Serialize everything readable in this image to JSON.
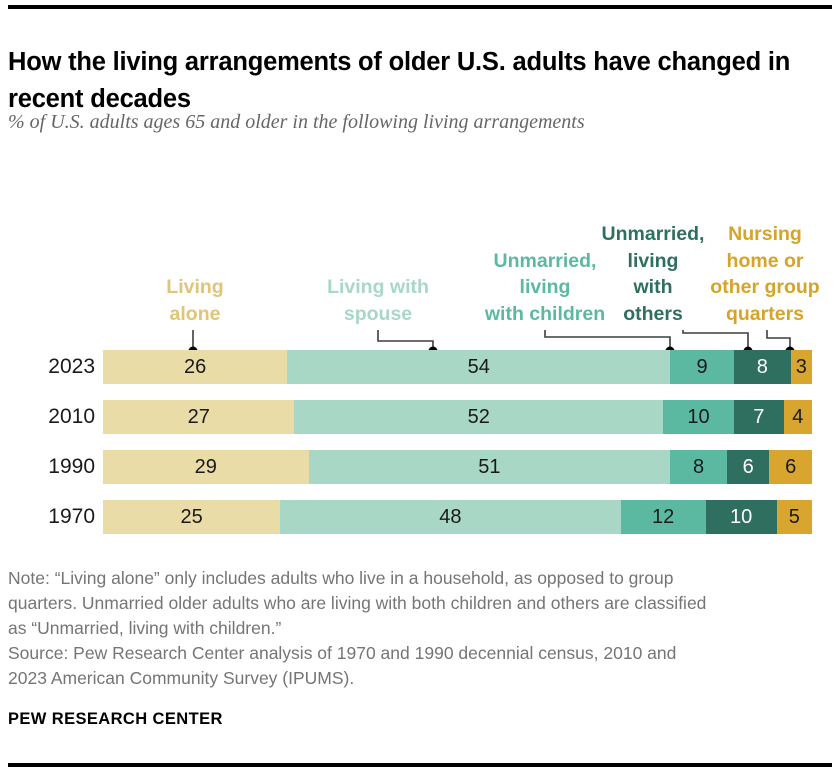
{
  "header": {
    "title": "How the living arrangements of older U.S. adults have changed in recent decades",
    "subtitle": "% of U.S. adults ages 65 and older in the following living arrangements"
  },
  "chart_data": {
    "type": "bar",
    "stacked": true,
    "orientation": "horizontal",
    "xlim": [
      0,
      100
    ],
    "categories": [
      "2023",
      "2010",
      "1990",
      "1970"
    ],
    "series": [
      {
        "name": "Living alone",
        "label_lines": [
          "Living",
          "alone"
        ],
        "color": "#e9dca7",
        "label_color": "#e0c478",
        "value_text_color": "#1a1a1a",
        "values": [
          26,
          27,
          29,
          25
        ]
      },
      {
        "name": "Living with spouse",
        "label_lines": [
          "Living with",
          "spouse"
        ],
        "color": "#a8d8c5",
        "label_color": "#a8d8c5",
        "value_text_color": "#1a1a1a",
        "values": [
          54,
          52,
          51,
          48
        ]
      },
      {
        "name": "Unmarried, living with children",
        "label_lines": [
          "Unmarried,",
          "living",
          "with children"
        ],
        "color": "#5bb9a1",
        "label_color": "#5bb9a1",
        "value_text_color": "#1a1a1a",
        "values": [
          9,
          10,
          8,
          12
        ]
      },
      {
        "name": "Unmarried, living with others",
        "label_lines": [
          "Unmarried,",
          "living",
          "with",
          "others"
        ],
        "color": "#2f6f60",
        "label_color": "#2f6f60",
        "value_text_color": "#ffffff",
        "values": [
          8,
          7,
          6,
          10
        ]
      },
      {
        "name": "Nursing home or other group quarters",
        "label_lines": [
          "Nursing",
          "home or",
          "other group",
          "quarters"
        ],
        "color": "#d8a62e",
        "label_color": "#d5a428",
        "value_text_color": "#1a1a1a",
        "values": [
          3,
          4,
          6,
          5
        ]
      }
    ]
  },
  "notes": {
    "lines": [
      "Note: “Living alone” only includes adults who live in a household, as opposed to group",
      "quarters. Unmarried older adults who are living with both children and others are classified",
      "as “Unmarried, living with children.”",
      "Source: Pew Research Center analysis of 1970 and 1990 decennial census, 2010 and",
      "2023 American Community Survey (IPUMS)."
    ]
  },
  "footer": {
    "brand": "PEW RESEARCH CENTER"
  }
}
